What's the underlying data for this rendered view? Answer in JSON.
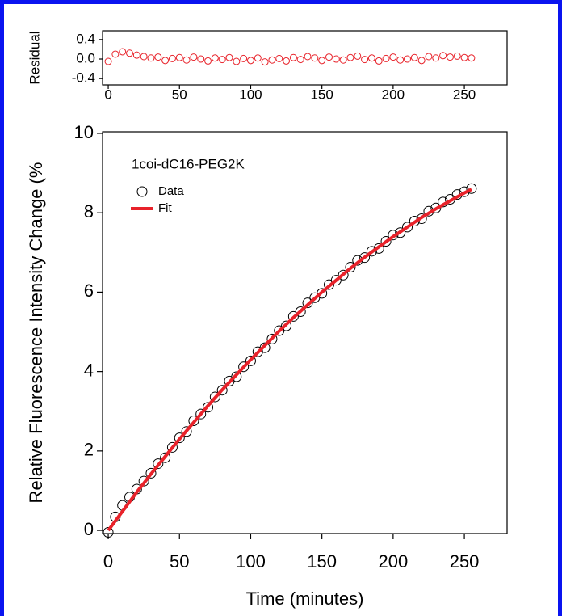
{
  "chart_data": [
    {
      "type": "scatter",
      "ylabel": "Residual",
      "color": "#e8222a",
      "x": [
        0,
        5,
        10,
        15,
        20,
        25,
        30,
        35,
        40,
        45,
        50,
        55,
        60,
        65,
        70,
        75,
        80,
        85,
        90,
        95,
        100,
        105,
        110,
        115,
        120,
        125,
        130,
        135,
        140,
        145,
        150,
        155,
        160,
        165,
        170,
        175,
        180,
        185,
        190,
        195,
        200,
        205,
        210,
        215,
        220,
        225,
        230,
        235,
        240,
        245,
        250,
        255
      ],
      "values": [
        -0.05,
        0.1,
        0.15,
        0.12,
        0.08,
        0.05,
        0.02,
        0.04,
        -0.03,
        0.01,
        0.03,
        -0.02,
        0.04,
        0.0,
        -0.04,
        0.02,
        -0.01,
        0.03,
        -0.05,
        0.01,
        -0.03,
        0.02,
        -0.06,
        -0.02,
        0.01,
        -0.04,
        0.03,
        -0.01,
        0.05,
        0.02,
        -0.03,
        0.04,
        0.0,
        -0.02,
        0.03,
        0.06,
        -0.01,
        0.02,
        -0.04,
        0.01,
        0.04,
        -0.02,
        0.0,
        0.03,
        -0.03,
        0.05,
        0.02,
        0.07,
        0.04,
        0.06,
        0.03,
        0.02
      ],
      "xlim": [
        -4,
        280
      ],
      "xticks": [
        0,
        50,
        100,
        150,
        200,
        250
      ],
      "ylim": [
        -0.53,
        0.58
      ],
      "yticks": [
        0.4,
        {
          "value": 0,
          "label": "0.0"
        },
        -0.4
      ]
    },
    {
      "type": "scatter",
      "xlabel": "Time (minutes)",
      "ylabel": "Relative Fluorescence Intensity Change (%",
      "annotation": "1coi-dC16-PEG2K",
      "x": [
        0,
        5,
        10,
        15,
        20,
        25,
        30,
        35,
        40,
        45,
        50,
        55,
        60,
        65,
        70,
        75,
        80,
        85,
        90,
        95,
        100,
        105,
        110,
        115,
        120,
        125,
        130,
        135,
        140,
        145,
        150,
        155,
        160,
        165,
        170,
        175,
        180,
        185,
        190,
        195,
        200,
        205,
        210,
        215,
        220,
        225,
        230,
        235,
        240,
        245,
        250,
        255
      ],
      "series": [
        {
          "name": "Data",
          "color": "#000000",
          "style": "markers",
          "values": [
            -0.05,
            0.34,
            0.63,
            0.84,
            1.04,
            1.24,
            1.44,
            1.68,
            1.83,
            2.09,
            2.33,
            2.49,
            2.76,
            2.93,
            3.1,
            3.36,
            3.53,
            3.76,
            3.87,
            4.12,
            4.27,
            4.5,
            4.6,
            4.82,
            5.03,
            5.15,
            5.39,
            5.51,
            5.73,
            5.86,
            5.97,
            6.19,
            6.3,
            6.43,
            6.63,
            6.8,
            6.87,
            7.03,
            7.1,
            7.28,
            7.44,
            7.5,
            7.64,
            7.79,
            7.85,
            8.04,
            8.12,
            8.27,
            8.34,
            8.46,
            8.53,
            8.61
          ]
        },
        {
          "name": "Fit",
          "color": "#e8222a",
          "style": "line",
          "values": [
            0,
            0.24,
            0.48,
            0.72,
            0.96,
            1.19,
            1.42,
            1.64,
            1.86,
            2.08,
            2.3,
            2.51,
            2.72,
            2.93,
            3.14,
            3.34,
            3.54,
            3.73,
            3.92,
            4.11,
            4.3,
            4.48,
            4.66,
            4.84,
            5.02,
            5.19,
            5.36,
            5.52,
            5.68,
            5.84,
            6.0,
            6.15,
            6.3,
            6.45,
            6.6,
            6.74,
            6.88,
            7.01,
            7.14,
            7.27,
            7.4,
            7.52,
            7.64,
            7.76,
            7.88,
            7.99,
            8.1,
            8.2,
            8.3,
            8.4,
            8.5,
            8.59
          ]
        }
      ],
      "xlim": [
        -4,
        280
      ],
      "xticks": [
        0,
        50,
        100,
        150,
        200,
        250
      ],
      "ylim": [
        -0.08,
        10.04
      ],
      "yticks": [
        0,
        2,
        4,
        6,
        8,
        10
      ]
    }
  ]
}
